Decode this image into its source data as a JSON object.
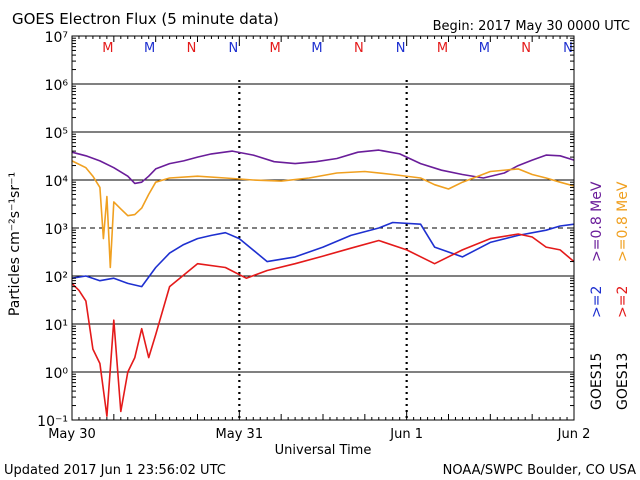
{
  "header": {
    "title": "GOES Electron Flux (5 minute data)",
    "begin": "Begin: 2017 May 30 0000 UTC"
  },
  "footer": {
    "updated": "Updated 2017 Jun  1 23:56:02 UTC",
    "credit": "NOAA/SWPC Boulder, CO USA"
  },
  "chart_data": {
    "type": "line",
    "title": "GOES Electron Flux (5 minute data)",
    "xlabel": "Universal Time",
    "ylabel": "Particles cm⁻²s⁻¹sr⁻¹",
    "y_scale": "log",
    "ylim": [
      0.1,
      10000000
    ],
    "xlim": [
      "2017-05-30 00:00",
      "2017-06-02 00:00"
    ],
    "x_ticks": [
      "May 30",
      "May 31",
      "Jun 1",
      "Jun 2"
    ],
    "y_ticks": [
      "10⁻¹",
      "10⁰",
      "10¹",
      "10²",
      "10³",
      "10⁴",
      "10⁵",
      "10⁶",
      "10⁷"
    ],
    "threshold_line": 1000,
    "legend": [
      {
        "satellite": "GOES15",
        "label": ">=2",
        "color": "#1e30d0"
      },
      {
        "satellite": "GOES15",
        "label": ">=0.8 MeV",
        "color": "#6a1d9a"
      },
      {
        "satellite": "GOES13",
        "label": ">=2",
        "color": "#e41a1a"
      },
      {
        "satellite": "GOES13",
        "label": ">=0.8 MeV",
        "color": "#f0a020"
      }
    ],
    "legend_groups": [
      "GOES15",
      "GOES13"
    ],
    "markers": [
      {
        "label": "M",
        "x": "2017-05-30 06:00",
        "color": "#e41a1a"
      },
      {
        "label": "M",
        "x": "2017-05-30 12:00",
        "color": "#1e30d0"
      },
      {
        "label": "N",
        "x": "2017-05-30 18:00",
        "color": "#e41a1a"
      },
      {
        "label": "N",
        "x": "2017-05-31 00:00",
        "color": "#1e30d0"
      },
      {
        "label": "M",
        "x": "2017-05-31 06:00",
        "color": "#e41a1a"
      },
      {
        "label": "M",
        "x": "2017-05-31 12:00",
        "color": "#1e30d0"
      },
      {
        "label": "N",
        "x": "2017-05-31 18:00",
        "color": "#e41a1a"
      },
      {
        "label": "N",
        "x": "2017-06-01 00:00",
        "color": "#1e30d0"
      },
      {
        "label": "M",
        "x": "2017-06-01 06:00",
        "color": "#e41a1a"
      },
      {
        "label": "M",
        "x": "2017-06-01 12:00",
        "color": "#1e30d0"
      },
      {
        "label": "N",
        "x": "2017-06-01 18:00",
        "color": "#e41a1a"
      },
      {
        "label": "N",
        "x": "2017-06-02 00:00",
        "color": "#1e30d0"
      }
    ],
    "series": [
      {
        "name": "GOES15 >=0.8 MeV",
        "color": "#6a1d9a",
        "x": [
          "2017-05-30 00:00",
          "2017-05-30 02:00",
          "2017-05-30 04:00",
          "2017-05-30 06:00",
          "2017-05-30 08:00",
          "2017-05-30 09:00",
          "2017-05-30 10:00",
          "2017-05-30 11:00",
          "2017-05-30 12:00",
          "2017-05-30 14:00",
          "2017-05-30 16:00",
          "2017-05-30 18:00",
          "2017-05-30 20:00",
          "2017-05-30 23:00",
          "2017-05-31 02:00",
          "2017-05-31 05:00",
          "2017-05-31 08:00",
          "2017-05-31 11:00",
          "2017-05-31 14:00",
          "2017-05-31 17:00",
          "2017-05-31 20:00",
          "2017-05-31 23:00",
          "2017-06-01 02:00",
          "2017-06-01 05:00",
          "2017-06-01 08:00",
          "2017-06-01 11:00",
          "2017-06-01 14:00",
          "2017-06-01 16:00",
          "2017-06-01 18:00",
          "2017-06-01 20:00",
          "2017-06-01 22:00",
          "2017-06-02 00:00"
        ],
        "y": [
          38000,
          32000,
          25000,
          18000,
          12000,
          8500,
          9000,
          12000,
          17000,
          22000,
          25000,
          30000,
          35000,
          40000,
          33000,
          24000,
          22000,
          24000,
          28000,
          38000,
          42000,
          35000,
          22000,
          16000,
          13000,
          11000,
          14000,
          20000,
          26000,
          33000,
          32000,
          26000
        ]
      },
      {
        "name": "GOES13 >=0.8 MeV",
        "color": "#f0a020",
        "x": [
          "2017-05-30 00:00",
          "2017-05-30 02:00",
          "2017-05-30 03:00",
          "2017-05-30 04:00",
          "2017-05-30 04:30",
          "2017-05-30 05:00",
          "2017-05-30 05:30",
          "2017-05-30 06:00",
          "2017-05-30 07:00",
          "2017-05-30 08:00",
          "2017-05-30 09:00",
          "2017-05-30 10:00",
          "2017-05-30 11:00",
          "2017-05-30 12:00",
          "2017-05-30 14:00",
          "2017-05-30 18:00",
          "2017-05-30 22:00",
          "2017-05-31 02:00",
          "2017-05-31 06:00",
          "2017-05-31 10:00",
          "2017-05-31 14:00",
          "2017-05-31 18:00",
          "2017-05-31 22:00",
          "2017-06-01 02:00",
          "2017-06-01 04:00",
          "2017-06-01 06:00",
          "2017-06-01 08:00",
          "2017-06-01 12:00",
          "2017-06-01 16:00",
          "2017-06-01 18:00",
          "2017-06-01 20:00",
          "2017-06-01 22:00",
          "2017-06-02 00:00"
        ],
        "y": [
          25000,
          18000,
          12000,
          7000,
          600,
          4500,
          150,
          3500,
          2500,
          1800,
          1900,
          2600,
          5000,
          9000,
          11000,
          12000,
          11000,
          10000,
          9500,
          11000,
          14000,
          15000,
          13000,
          11000,
          8000,
          6500,
          9000,
          15000,
          17000,
          13000,
          11000,
          9000,
          7500
        ]
      },
      {
        "name": "GOES15 >=2",
        "color": "#1e30d0",
        "x": [
          "2017-05-30 00:00",
          "2017-05-30 02:00",
          "2017-05-30 04:00",
          "2017-05-30 06:00",
          "2017-05-30 08:00",
          "2017-05-30 10:00",
          "2017-05-30 12:00",
          "2017-05-30 14:00",
          "2017-05-30 16:00",
          "2017-05-30 18:00",
          "2017-05-30 20:00",
          "2017-05-30 22:00",
          "2017-05-31 00:00",
          "2017-05-31 04:00",
          "2017-05-31 08:00",
          "2017-05-31 12:00",
          "2017-05-31 16:00",
          "2017-05-31 20:00",
          "2017-05-31 22:00",
          "2017-06-01 02:00",
          "2017-06-01 04:00",
          "2017-06-01 08:00",
          "2017-06-01 12:00",
          "2017-06-01 16:00",
          "2017-06-01 20:00",
          "2017-06-01 22:00",
          "2017-06-02 00:00"
        ],
        "y": [
          90,
          100,
          80,
          90,
          70,
          60,
          150,
          300,
          450,
          600,
          700,
          800,
          600,
          200,
          250,
          400,
          700,
          1000,
          1300,
          1200,
          400,
          250,
          500,
          700,
          900,
          1100,
          1200
        ]
      },
      {
        "name": "GOES13 >=2",
        "color": "#e41a1a",
        "x": [
          "2017-05-30 00:00",
          "2017-05-30 01:00",
          "2017-05-30 02:00",
          "2017-05-30 03:00",
          "2017-05-30 04:00",
          "2017-05-30 05:00",
          "2017-05-30 06:00",
          "2017-05-30 07:00",
          "2017-05-30 08:00",
          "2017-05-30 09:00",
          "2017-05-30 10:00",
          "2017-05-30 11:00",
          "2017-05-30 12:00",
          "2017-05-30 14:00",
          "2017-05-30 18:00",
          "2017-05-30 22:00",
          "2017-05-31 01:00",
          "2017-05-31 04:00",
          "2017-05-31 08:00",
          "2017-05-31 12:00",
          "2017-05-31 16:00",
          "2017-05-31 20:00",
          "2017-06-01 00:00",
          "2017-06-01 04:00",
          "2017-06-01 08:00",
          "2017-06-01 12:00",
          "2017-06-01 16:00",
          "2017-06-01 18:00",
          "2017-06-01 20:00",
          "2017-06-01 22:00",
          "2017-06-02 00:00"
        ],
        "y": [
          70,
          50,
          30,
          3,
          1.5,
          0.12,
          12,
          0.15,
          1,
          2,
          8,
          2,
          6,
          60,
          180,
          150,
          90,
          130,
          180,
          260,
          380,
          550,
          350,
          180,
          350,
          600,
          750,
          650,
          400,
          350,
          200
        ]
      }
    ]
  }
}
